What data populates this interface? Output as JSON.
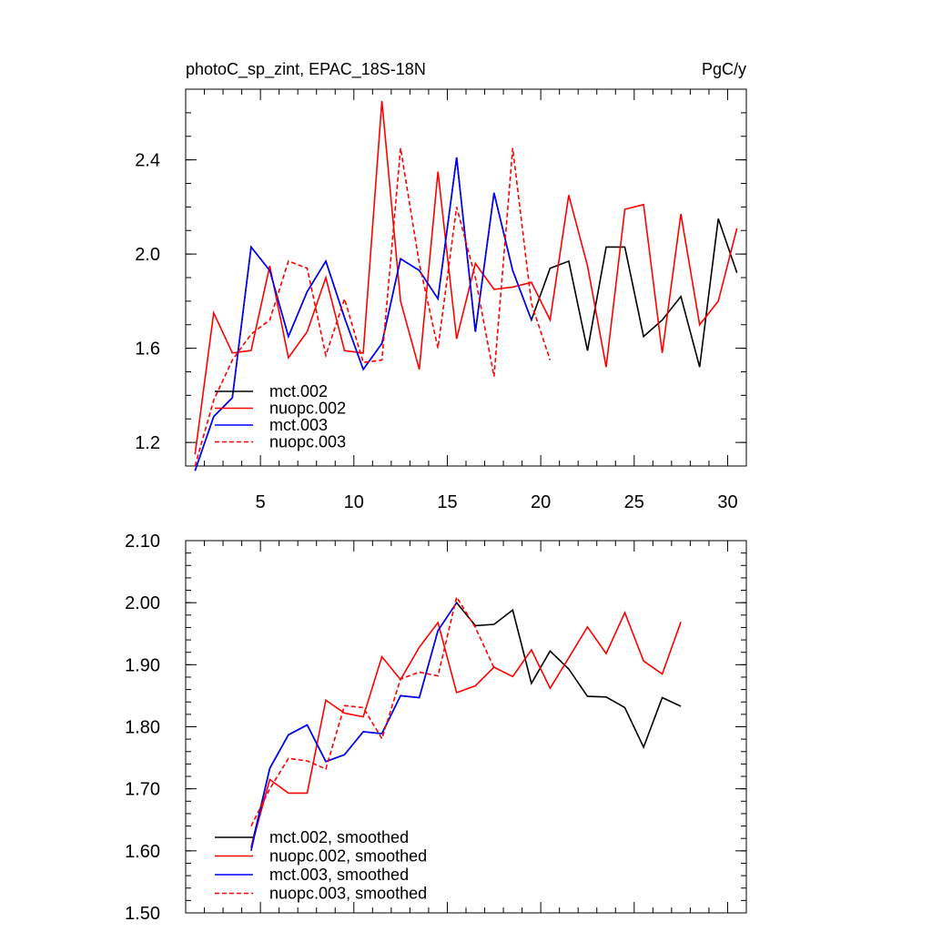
{
  "chart_data": [
    {
      "type": "line",
      "title": "photoC_sp_zint, EPAC_18S-18N",
      "units": "PgC/y",
      "xlim": [
        1,
        31
      ],
      "ylim": [
        1.1,
        2.7
      ],
      "xticks": [
        5,
        10,
        15,
        20,
        25,
        30
      ],
      "yticks": [
        1.2,
        1.6,
        2.0,
        2.4
      ],
      "ytick_labels": [
        "1.2",
        "1.6",
        "2.0",
        "2.4"
      ],
      "xminor": 1,
      "yminor": 0.1,
      "legend_position": "lower-left",
      "series": [
        {
          "name": "mct.002",
          "color": "#000000",
          "dash": "solid",
          "x": [
            1.5,
            2.5,
            3.5,
            4.5,
            5.5,
            6.5,
            7.5,
            8.5,
            9.5,
            10.5,
            11.5,
            12.5,
            13.5,
            14.5,
            15.5,
            16.5,
            17.5,
            18.5,
            19.5,
            20.5,
            21.5,
            22.5,
            23.5,
            24.5,
            25.5,
            26.5,
            27.5,
            28.5,
            29.5,
            30.5
          ],
          "y": [
            1.08,
            1.31,
            1.39,
            2.03,
            1.93,
            1.65,
            1.84,
            1.97,
            1.73,
            1.51,
            1.62,
            1.98,
            1.93,
            1.81,
            2.41,
            1.67,
            2.26,
            1.93,
            1.72,
            1.94,
            1.97,
            1.59,
            2.03,
            2.03,
            1.65,
            1.72,
            1.82,
            1.52,
            2.15,
            1.92
          ]
        },
        {
          "name": "nuopc.002",
          "color": "#ff0000",
          "dash": "solid",
          "x": [
            1.5,
            2.5,
            3.5,
            4.5,
            5.5,
            6.5,
            7.5,
            8.5,
            9.5,
            10.5,
            11.5,
            12.5,
            13.5,
            14.5,
            15.5,
            16.5,
            17.5,
            18.5,
            19.5,
            20.5,
            21.5,
            22.5,
            23.5,
            24.5,
            25.5,
            26.5,
            27.5,
            28.5,
            29.5,
            30.5
          ],
          "y": [
            1.15,
            1.75,
            1.58,
            1.59,
            1.95,
            1.56,
            1.67,
            1.9,
            1.59,
            1.58,
            2.65,
            1.8,
            1.51,
            2.35,
            1.64,
            1.96,
            1.85,
            1.86,
            1.88,
            1.72,
            2.25,
            1.95,
            1.52,
            2.19,
            2.21,
            1.58,
            2.17,
            1.7,
            1.8,
            2.11
          ]
        },
        {
          "name": "mct.003",
          "color": "#0000ff",
          "dash": "solid",
          "x": [
            1.5,
            2.5,
            3.5,
            4.5,
            5.5,
            6.5,
            7.5,
            8.5,
            9.5,
            10.5,
            11.5,
            12.5,
            13.5,
            14.5,
            15.5,
            16.5,
            17.5,
            18.5,
            19.5
          ],
          "y": [
            1.08,
            1.31,
            1.39,
            2.03,
            1.93,
            1.65,
            1.84,
            1.97,
            1.73,
            1.51,
            1.62,
            1.98,
            1.93,
            1.81,
            2.41,
            1.67,
            2.26,
            1.93,
            1.72
          ]
        },
        {
          "name": "nuopc.003",
          "color": "#ff0000",
          "dash": "dashed",
          "x": [
            1.5,
            2.5,
            3.5,
            4.5,
            5.5,
            6.5,
            7.5,
            8.5,
            9.5,
            10.5,
            11.5,
            12.5,
            13.5,
            14.5,
            15.5,
            16.5,
            17.5,
            18.5,
            19.5,
            20.5
          ],
          "y": [
            1.1,
            1.38,
            1.55,
            1.66,
            1.72,
            1.97,
            1.94,
            1.57,
            1.81,
            1.54,
            1.55,
            2.45,
            1.96,
            1.6,
            2.2,
            1.9,
            1.48,
            2.45,
            1.79,
            1.55
          ]
        }
      ]
    },
    {
      "type": "line",
      "title": "",
      "xlim": [
        1,
        31
      ],
      "ylim": [
        1.5,
        2.1
      ],
      "xticks": [
        5,
        10,
        15,
        20,
        25,
        30
      ],
      "yticks": [
        1.5,
        1.6,
        1.7,
        1.8,
        1.9,
        2.0,
        2.1
      ],
      "ytick_labels": [
        "1.50",
        "1.60",
        "1.70",
        "1.80",
        "1.90",
        "2.00",
        "2.10"
      ],
      "xminor": 1,
      "yminor": 0.02,
      "legend_position": "lower-left",
      "series": [
        {
          "name": "mct.002, smoothed",
          "color": "#000000",
          "dash": "solid",
          "x": [
            4.5,
            5.5,
            6.5,
            7.5,
            8.5,
            9.5,
            10.5,
            11.5,
            12.5,
            13.5,
            14.5,
            15.5,
            16.5,
            17.5,
            18.5,
            19.5,
            20.5,
            21.5,
            22.5,
            23.5,
            24.5,
            25.5,
            26.5,
            27.5
          ],
          "y": [
            1.605,
            1.733,
            1.787,
            1.803,
            1.744,
            1.755,
            1.792,
            1.789,
            1.85,
            1.847,
            1.955,
            2.0,
            1.963,
            1.965,
            1.988,
            1.87,
            1.922,
            1.893,
            1.849,
            1.848,
            1.831,
            1.767,
            1.847,
            1.833
          ]
        },
        {
          "name": "nuopc.002, smoothed",
          "color": "#ff0000",
          "dash": "solid",
          "x": [
            4.5,
            5.5,
            6.5,
            7.5,
            8.5,
            9.5,
            10.5,
            11.5,
            12.5,
            13.5,
            14.5,
            15.5,
            16.5,
            17.5,
            18.5,
            19.5,
            20.5,
            21.5,
            22.5,
            23.5,
            24.5,
            25.5,
            26.5,
            27.5
          ],
          "y": [
            1.605,
            1.715,
            1.693,
            1.693,
            1.843,
            1.822,
            1.816,
            1.913,
            1.876,
            1.928,
            1.968,
            1.855,
            1.866,
            1.896,
            1.881,
            1.924,
            1.862,
            1.911,
            1.961,
            1.918,
            1.984,
            1.906,
            1.885,
            1.969
          ]
        },
        {
          "name": "mct.003, smoothed",
          "color": "#0000ff",
          "dash": "solid",
          "x": [
            4.5,
            5.5,
            6.5,
            7.5,
            8.5,
            9.5,
            10.5,
            11.5,
            12.5,
            13.5,
            14.5,
            15.5
          ],
          "y": [
            1.6,
            1.733,
            1.787,
            1.803,
            1.744,
            1.755,
            1.792,
            1.789,
            1.85,
            1.847,
            1.955,
            2.0
          ]
        },
        {
          "name": "nuopc.003, smoothed",
          "color": "#ff0000",
          "dash": "dashed",
          "x": [
            4.5,
            5.5,
            6.5,
            7.5,
            8.5,
            9.5,
            10.5,
            11.5,
            12.5,
            13.5,
            14.5,
            15.5,
            16.5,
            17.5
          ],
          "y": [
            1.64,
            1.7,
            1.749,
            1.745,
            1.732,
            1.834,
            1.831,
            1.781,
            1.877,
            1.888,
            1.882,
            2.009,
            1.96,
            1.895
          ]
        }
      ]
    }
  ]
}
